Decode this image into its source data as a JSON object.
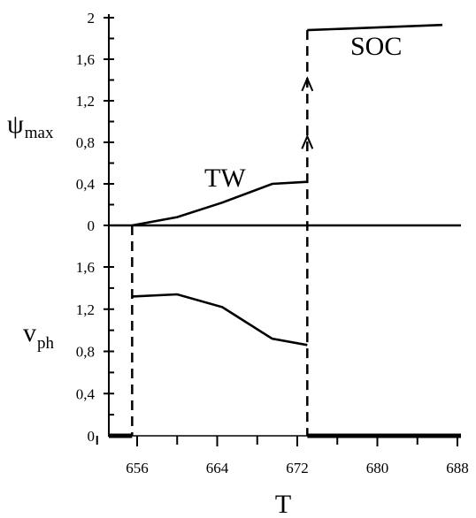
{
  "chart_data": [
    {
      "type": "line",
      "panel": "top",
      "ylabel": "ψ",
      "ylabel_sub": "max",
      "ylim": [
        0,
        2
      ],
      "yticks": [
        "0",
        "0,4",
        "0,8",
        "1,2",
        "1,6",
        "2"
      ],
      "ytick_values": [
        0,
        0.4,
        0.8,
        1.2,
        1.6,
        2.0
      ],
      "minor_ticks": [
        0.2,
        0.6,
        1.0,
        1.4,
        1.8
      ],
      "series": [
        {
          "name": "TW",
          "x": [
            655.5,
            660,
            664.5,
            669.5,
            673
          ],
          "y": [
            0,
            0.08,
            0.22,
            0.4,
            0.42
          ]
        },
        {
          "name": "SOC",
          "x": [
            673,
            686.5
          ],
          "y": [
            1.88,
            1.93
          ]
        }
      ],
      "annotations": [
        "TW",
        "SOC"
      ],
      "transition_x": 673
    },
    {
      "type": "line",
      "panel": "bottom",
      "ylabel": "v",
      "ylabel_sub": "ph",
      "ylim": [
        0,
        1.6
      ],
      "yticks": [
        "0",
        "0,4",
        "0,8",
        "1,2",
        "1,6"
      ],
      "ytick_values": [
        0,
        0.4,
        0.8,
        1.2,
        1.6
      ],
      "minor_ticks": [
        0.2,
        0.6,
        1.0,
        1.4
      ],
      "xlabel": "T",
      "xlim": [
        652,
        688
      ],
      "xticks": [
        "656",
        "664",
        "672",
        "680",
        "688"
      ],
      "xtick_values": [
        656,
        664,
        672,
        680,
        688
      ],
      "series": [
        {
          "x": [
            655.5,
            660,
            664.5,
            669.5,
            673
          ],
          "y": [
            1.32,
            1.34,
            1.22,
            0.92,
            0.86
          ]
        }
      ],
      "zero_segments": [
        [
          652,
          655.5
        ],
        [
          673,
          688
        ]
      ],
      "onset_x": 655.5,
      "transition_x": 673
    }
  ]
}
